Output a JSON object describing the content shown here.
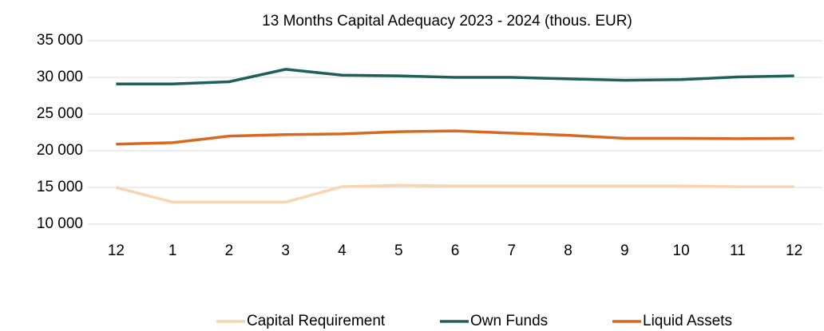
{
  "chart_data": {
    "type": "line",
    "title": "13 Months Capital Adequacy  2023 - 2024 (thous. EUR)",
    "categories": [
      "12",
      "1",
      "2",
      "3",
      "4",
      "5",
      "6",
      "7",
      "8",
      "9",
      "10",
      "11",
      "12"
    ],
    "series": [
      {
        "name": "Capital Requirement",
        "color": "#f8d5b2",
        "values": [
          15000,
          13000,
          13000,
          13000,
          15100,
          15300,
          15200,
          15200,
          15200,
          15200,
          15200,
          15100,
          15100
        ]
      },
      {
        "name": "Own Funds",
        "color": "#1f5f5b",
        "values": [
          29100,
          29100,
          29400,
          31100,
          30300,
          30200,
          30000,
          30000,
          29800,
          29600,
          29700,
          30050,
          30200
        ]
      },
      {
        "name": "Liquid Assets",
        "color": "#d9681e",
        "values": [
          20900,
          21100,
          22000,
          22200,
          22300,
          22600,
          22700,
          22400,
          22100,
          21700,
          21700,
          21650,
          21700
        ]
      }
    ],
    "ylim": [
      10000,
      35000
    ],
    "yticks": [
      {
        "value": 10000,
        "label": "10 000"
      },
      {
        "value": 15000,
        "label": "15 000"
      },
      {
        "value": 20000,
        "label": "20 000"
      },
      {
        "value": 25000,
        "label": "25 000"
      },
      {
        "value": 30000,
        "label": "30 000"
      },
      {
        "value": 35000,
        "label": "35 000"
      }
    ],
    "grid": true,
    "legend": "bottom"
  }
}
